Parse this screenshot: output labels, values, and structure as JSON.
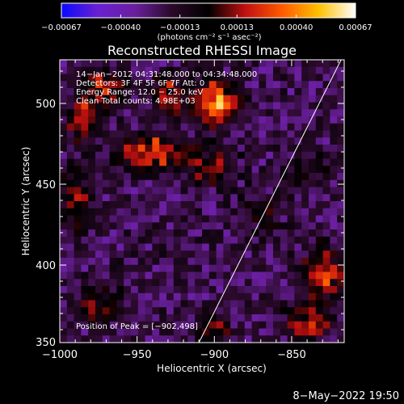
{
  "chart_data": {
    "type": "heatmap",
    "title": "Reconstructed RHESSI Image",
    "xlabel": "Heliocentric X (arcsec)",
    "ylabel": "Heliocentric Y (arcsec)",
    "xlim": [
      -1000,
      -816
    ],
    "ylim": [
      352,
      527
    ],
    "x_ticks": [
      -1000,
      -950,
      -900,
      -850
    ],
    "x_tick_labels": [
      "−1000",
      "−950",
      "−900",
      "−850"
    ],
    "y_ticks": [
      400,
      450,
      500
    ],
    "y_tick_labels": [
      "400",
      "450",
      "500"
    ],
    "colorbar": {
      "min": -0.00067,
      "max": 0.00067,
      "ticks": [
        -0.00067,
        -0.0004,
        -0.00013,
        0.00013,
        0.0004,
        0.00067
      ],
      "tick_labels": [
        "−0.00067",
        "−0.00040",
        "−0.00013",
        "0.00013",
        "0.00040",
        "0.00067"
      ],
      "units": "(photons cm⁻² s⁻¹ asec⁻²)",
      "colors": [
        "#0a0aff",
        "#6a20d0",
        "#6a1f9e",
        "#2a0a2a",
        "#000000",
        "#c01010",
        "#ff5a00",
        "#ffc000",
        "#ffffff"
      ]
    },
    "annotations": [
      "14−Jan−2012 04:31:48.000 to 04:34:48.000",
      "Detectors: 3F 4F 5F 6F 7F  Att: 0",
      "Energy Range: 12.0 − 25.0 keV",
      "Clean    Total counts: 4.98E+03"
    ],
    "peak_label": "Position of Peak = [−902,498]",
    "peak": [
      -902,
      498
    ],
    "limb_line": [
      [
        -910,
        352
      ],
      [
        -818,
        527
      ]
    ],
    "grid_cols": 40,
    "grid_rows": 40,
    "hotspots": [
      {
        "x": -900,
        "y": 500,
        "amp": 0.00067,
        "sx": 10,
        "sy": 9
      },
      {
        "x": -930,
        "y": 505,
        "amp": 0.00038,
        "sx": 8,
        "sy": 8
      },
      {
        "x": -970,
        "y": 510,
        "amp": 0.0004,
        "sx": 10,
        "sy": 9
      },
      {
        "x": -985,
        "y": 490,
        "amp": 0.00035,
        "sx": 8,
        "sy": 10
      },
      {
        "x": -940,
        "y": 470,
        "amp": 0.00045,
        "sx": 16,
        "sy": 8
      },
      {
        "x": -900,
        "y": 460,
        "amp": 0.00035,
        "sx": 10,
        "sy": 8
      },
      {
        "x": -990,
        "y": 440,
        "amp": 0.0003,
        "sx": 8,
        "sy": 14
      },
      {
        "x": -830,
        "y": 395,
        "amp": 0.0005,
        "sx": 9,
        "sy": 11
      },
      {
        "x": -840,
        "y": 365,
        "amp": 0.00045,
        "sx": 10,
        "sy": 8
      },
      {
        "x": -975,
        "y": 375,
        "amp": 0.0003,
        "sx": 10,
        "sy": 8
      },
      {
        "x": -900,
        "y": 360,
        "amp": 0.00028,
        "sx": 8,
        "sy": 7
      },
      {
        "x": -870,
        "y": 430,
        "amp": 0.0002,
        "sx": 10,
        "sy": 10
      },
      {
        "x": -840,
        "y": 460,
        "amp": 0.00018,
        "sx": 12,
        "sy": 10
      }
    ],
    "noise_seed": 7
  },
  "footer": "8−May−2022 19:50"
}
